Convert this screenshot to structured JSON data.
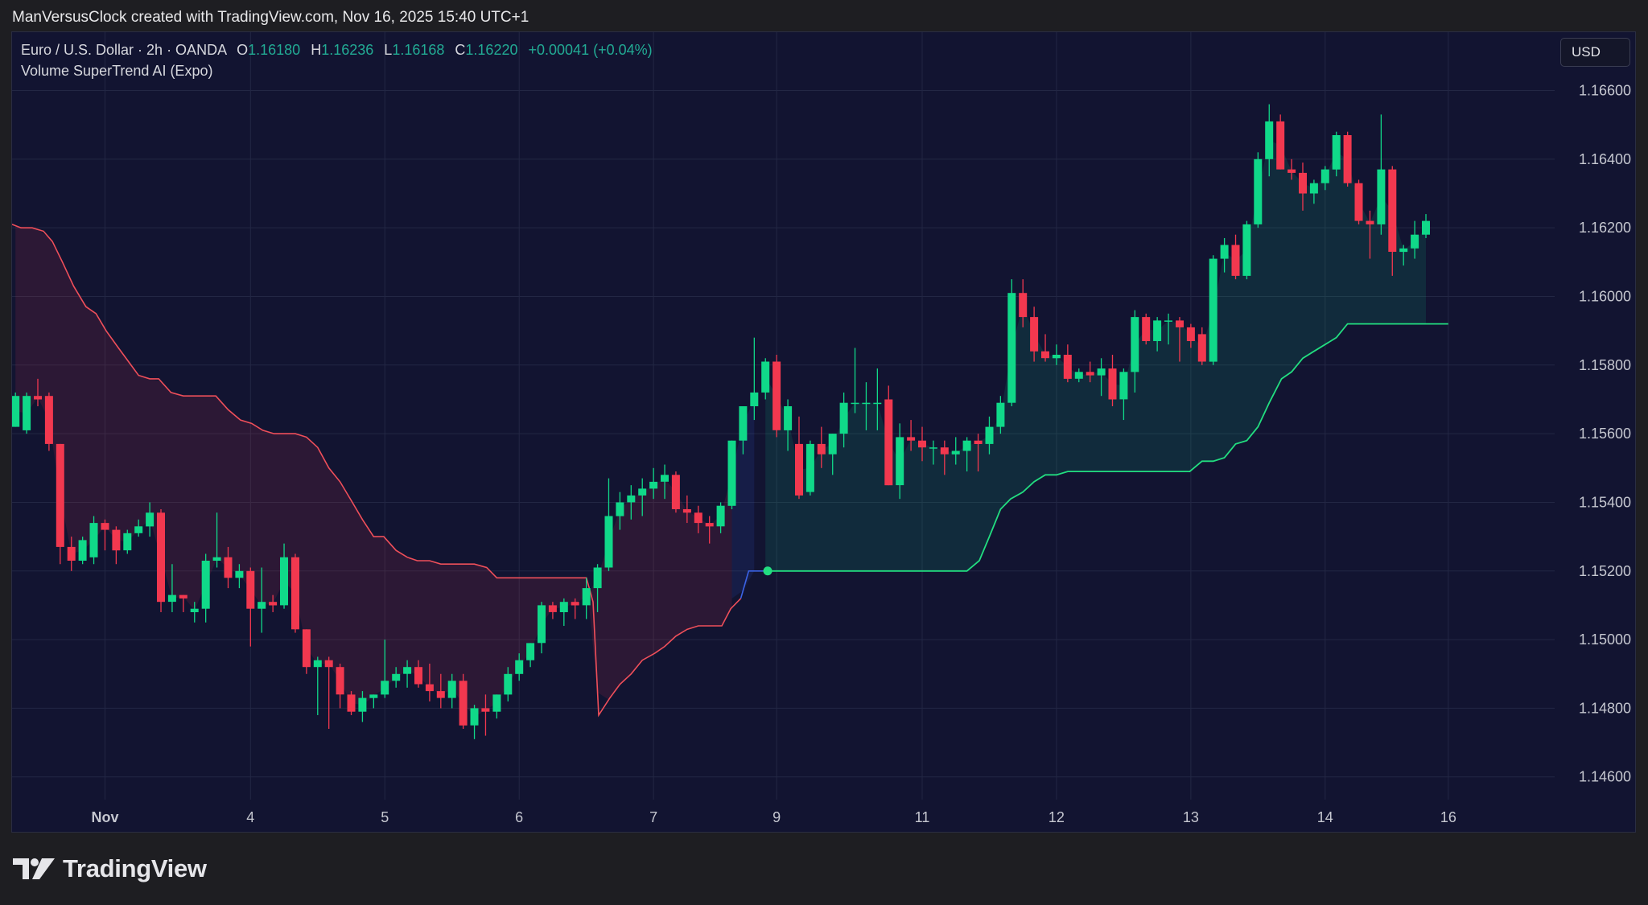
{
  "header": {
    "caption": "ManVersusClock created with TradingView.com, Nov 16, 2025 15:40 UTC+1"
  },
  "legend": {
    "symbol": "Euro / U.S. Dollar · 2h · OANDA",
    "open_label": "O",
    "open": "1.16180",
    "high_label": "H",
    "high": "1.16236",
    "low_label": "L",
    "low": "1.16168",
    "close_label": "C",
    "close": "1.16220",
    "change": "+0.00041 (+0.04%)",
    "indicator": "Volume SuperTrend AI (Expo)"
  },
  "currency_button": {
    "label": "USD"
  },
  "footer": {
    "logo_text": "TradingView",
    "logo_icon": "tradingview-logo-icon"
  },
  "colors": {
    "background": "#121431",
    "grid": "#232744",
    "up": "#10d989",
    "down": "#f2384f",
    "supertrend_down": "#ef4f5a",
    "supertrend_up": "#22dd80",
    "supertrend_transition": "#3b63e6",
    "legend_value": "#22ab94"
  },
  "chart_data": {
    "type": "candlestick",
    "y_ticks": [
      1.146,
      1.148,
      1.15,
      1.152,
      1.154,
      1.156,
      1.158,
      1.16,
      1.162,
      1.164,
      1.166
    ],
    "y_tick_labels": [
      "1.14600",
      "1.14800",
      "1.15000",
      "1.15200",
      "1.15400",
      "1.15600",
      "1.15800",
      "1.16000",
      "1.16200",
      "1.16400",
      "1.16600"
    ],
    "ylim": [
      1.1444,
      1.1677
    ],
    "x_ticks": [
      {
        "label": "Nov",
        "index": 8
      },
      {
        "label": "4",
        "index": 21
      },
      {
        "label": "5",
        "index": 33
      },
      {
        "label": "6",
        "index": 45
      },
      {
        "label": "7",
        "index": 57
      },
      {
        "label": "9",
        "index": 68
      },
      {
        "label": "11",
        "index": 81
      },
      {
        "label": "12",
        "index": 93
      },
      {
        "label": "13",
        "index": 105
      },
      {
        "label": "14",
        "index": 117
      },
      {
        "label": "16",
        "index": 128
      }
    ],
    "x_range": [
      -0.3,
      137.5
    ],
    "ohlc": [
      [
        1.1562,
        1.1572,
        1.1562,
        1.1571
      ],
      [
        1.1561,
        1.1572,
        1.156,
        1.1571
      ],
      [
        1.1571,
        1.1576,
        1.1568,
        1.157
      ],
      [
        1.1571,
        1.1572,
        1.1555,
        1.1557
      ],
      [
        1.1557,
        1.1557,
        1.1522,
        1.1527
      ],
      [
        1.1527,
        1.153,
        1.152,
        1.1523
      ],
      [
        1.1523,
        1.153,
        1.1522,
        1.1529
      ],
      [
        1.1524,
        1.1536,
        1.1522,
        1.1534
      ],
      [
        1.1534,
        1.1535,
        1.1526,
        1.1532
      ],
      [
        1.1532,
        1.1533,
        1.1522,
        1.1526
      ],
      [
        1.1526,
        1.1532,
        1.1525,
        1.1531
      ],
      [
        1.1531,
        1.1535,
        1.153,
        1.1533
      ],
      [
        1.1533,
        1.154,
        1.153,
        1.1537
      ],
      [
        1.1537,
        1.1538,
        1.1508,
        1.1511
      ],
      [
        1.1511,
        1.1522,
        1.1508,
        1.1513
      ],
      [
        1.1513,
        1.1513,
        1.1508,
        1.1512
      ],
      [
        1.1508,
        1.1511,
        1.1505,
        1.1509
      ],
      [
        1.1509,
        1.1525,
        1.1505,
        1.1523
      ],
      [
        1.1523,
        1.1537,
        1.1521,
        1.1524
      ],
      [
        1.1524,
        1.1527,
        1.1515,
        1.1518
      ],
      [
        1.1518,
        1.1522,
        1.1515,
        1.152
      ],
      [
        1.152,
        1.1521,
        1.1498,
        1.1509
      ],
      [
        1.1509,
        1.1521,
        1.1502,
        1.1511
      ],
      [
        1.1511,
        1.1513,
        1.1508,
        1.151
      ],
      [
        1.151,
        1.1528,
        1.1509,
        1.1524
      ],
      [
        1.1524,
        1.1525,
        1.1502,
        1.1503
      ],
      [
        1.1503,
        1.1503,
        1.149,
        1.1492
      ],
      [
        1.1492,
        1.1495,
        1.1478,
        1.1494
      ],
      [
        1.1494,
        1.1495,
        1.1474,
        1.1492
      ],
      [
        1.1492,
        1.1493,
        1.148,
        1.1484
      ],
      [
        1.1484,
        1.1485,
        1.1478,
        1.1479
      ],
      [
        1.1479,
        1.1485,
        1.1476,
        1.1483
      ],
      [
        1.1483,
        1.1484,
        1.148,
        1.1484
      ],
      [
        1.1484,
        1.15,
        1.1483,
        1.1488
      ],
      [
        1.1488,
        1.1492,
        1.1486,
        1.149
      ],
      [
        1.149,
        1.1494,
        1.1486,
        1.1492
      ],
      [
        1.1492,
        1.1494,
        1.1486,
        1.1487
      ],
      [
        1.1487,
        1.1493,
        1.1482,
        1.1485
      ],
      [
        1.1485,
        1.149,
        1.148,
        1.1483
      ],
      [
        1.1483,
        1.149,
        1.148,
        1.1488
      ],
      [
        1.1488,
        1.149,
        1.1474,
        1.1475
      ],
      [
        1.1475,
        1.1481,
        1.1471,
        1.148
      ],
      [
        1.148,
        1.1484,
        1.1472,
        1.1479
      ],
      [
        1.1479,
        1.1484,
        1.1477,
        1.1484
      ],
      [
        1.1484,
        1.1492,
        1.1482,
        1.149
      ],
      [
        1.149,
        1.1496,
        1.1488,
        1.1494
      ],
      [
        1.1494,
        1.1499,
        1.1492,
        1.1499
      ],
      [
        1.1499,
        1.1511,
        1.1496,
        1.151
      ],
      [
        1.151,
        1.1511,
        1.1506,
        1.1508
      ],
      [
        1.1508,
        1.1512,
        1.1504,
        1.1511
      ],
      [
        1.1511,
        1.1512,
        1.1506,
        1.151
      ],
      [
        1.151,
        1.1518,
        1.1506,
        1.1515
      ],
      [
        1.1515,
        1.1522,
        1.1508,
        1.1521
      ],
      [
        1.1521,
        1.1547,
        1.152,
        1.1536
      ],
      [
        1.1536,
        1.1543,
        1.1532,
        1.154
      ],
      [
        1.154,
        1.1545,
        1.1535,
        1.1542
      ],
      [
        1.1542,
        1.1547,
        1.1536,
        1.1544
      ],
      [
        1.1544,
        1.155,
        1.1541,
        1.1546
      ],
      [
        1.1546,
        1.1551,
        1.1541,
        1.1548
      ],
      [
        1.1548,
        1.1549,
        1.1537,
        1.1538
      ],
      [
        1.1538,
        1.1542,
        1.1534,
        1.1537
      ],
      [
        1.1537,
        1.1539,
        1.1531,
        1.1534
      ],
      [
        1.1534,
        1.1536,
        1.1528,
        1.1533
      ],
      [
        1.1533,
        1.154,
        1.1531,
        1.1539
      ],
      [
        1.1539,
        1.1558,
        1.1538,
        1.1558
      ],
      [
        1.1558,
        1.1568,
        1.1554,
        1.1568
      ],
      [
        1.1568,
        1.1588,
        1.1564,
        1.1572
      ],
      [
        1.1572,
        1.1582,
        1.157,
        1.1581
      ],
      [
        1.1581,
        1.1583,
        1.1559,
        1.1561
      ],
      [
        1.1561,
        1.157,
        1.1555,
        1.1568
      ],
      [
        1.1557,
        1.1565,
        1.1541,
        1.1542
      ],
      [
        1.1543,
        1.1558,
        1.1542,
        1.1557
      ],
      [
        1.1557,
        1.1562,
        1.155,
        1.1554
      ],
      [
        1.1554,
        1.156,
        1.1548,
        1.156
      ],
      [
        1.156,
        1.1572,
        1.1556,
        1.1569
      ],
      [
        1.1569,
        1.1585,
        1.1566,
        1.1569
      ],
      [
        1.1569,
        1.1575,
        1.1561,
        1.1569
      ],
      [
        1.1569,
        1.1579,
        1.1561,
        1.1569
      ],
      [
        1.157,
        1.1574,
        1.1545,
        1.1545
      ],
      [
        1.1545,
        1.1563,
        1.1541,
        1.1559
      ],
      [
        1.1559,
        1.1564,
        1.1555,
        1.1558
      ],
      [
        1.1558,
        1.1562,
        1.1552,
        1.1556
      ],
      [
        1.1556,
        1.1558,
        1.1551,
        1.1556
      ],
      [
        1.1556,
        1.1558,
        1.1548,
        1.1554
      ],
      [
        1.1554,
        1.1559,
        1.1551,
        1.1555
      ],
      [
        1.1555,
        1.1559,
        1.1549,
        1.1558
      ],
      [
        1.1558,
        1.156,
        1.1549,
        1.1557
      ],
      [
        1.1557,
        1.1565,
        1.1554,
        1.1562
      ],
      [
        1.1562,
        1.1571,
        1.156,
        1.1569
      ],
      [
        1.1569,
        1.1605,
        1.1568,
        1.1601
      ],
      [
        1.1601,
        1.1605,
        1.1591,
        1.1594
      ],
      [
        1.1594,
        1.1597,
        1.1581,
        1.1584
      ],
      [
        1.1584,
        1.1589,
        1.1581,
        1.1582
      ],
      [
        1.1582,
        1.1586,
        1.158,
        1.1583
      ],
      [
        1.1583,
        1.1586,
        1.1575,
        1.1576
      ],
      [
        1.1576,
        1.1579,
        1.1575,
        1.1578
      ],
      [
        1.1578,
        1.1581,
        1.1575,
        1.1577
      ],
      [
        1.1577,
        1.1582,
        1.1571,
        1.1579
      ],
      [
        1.1579,
        1.1583,
        1.1568,
        1.157
      ],
      [
        1.157,
        1.1579,
        1.1564,
        1.1578
      ],
      [
        1.1578,
        1.1596,
        1.1572,
        1.1594
      ],
      [
        1.1594,
        1.1595,
        1.1586,
        1.1587
      ],
      [
        1.1587,
        1.1594,
        1.1584,
        1.1593
      ],
      [
        1.1593,
        1.1595,
        1.1586,
        1.1593
      ],
      [
        1.1593,
        1.1594,
        1.1581,
        1.1591
      ],
      [
        1.1591,
        1.1592,
        1.1585,
        1.1587
      ],
      [
        1.1589,
        1.1591,
        1.158,
        1.1581
      ],
      [
        1.1581,
        1.1612,
        1.158,
        1.1611
      ],
      [
        1.1611,
        1.1617,
        1.1607,
        1.1615
      ],
      [
        1.1615,
        1.1618,
        1.1605,
        1.1606
      ],
      [
        1.1606,
        1.1622,
        1.1605,
        1.1621
      ],
      [
        1.1621,
        1.1642,
        1.162,
        1.164
      ],
      [
        1.164,
        1.1656,
        1.1635,
        1.1651
      ],
      [
        1.1651,
        1.1653,
        1.1637,
        1.1637
      ],
      [
        1.1637,
        1.164,
        1.1634,
        1.1636
      ],
      [
        1.1636,
        1.1639,
        1.1625,
        1.163
      ],
      [
        1.163,
        1.1634,
        1.1627,
        1.1633
      ],
      [
        1.1633,
        1.1638,
        1.1631,
        1.1637
      ],
      [
        1.1637,
        1.1648,
        1.1635,
        1.1647
      ],
      [
        1.1647,
        1.1648,
        1.1632,
        1.1633
      ],
      [
        1.1633,
        1.1634,
        1.1621,
        1.1622
      ],
      [
        1.1622,
        1.1625,
        1.1611,
        1.1621
      ],
      [
        1.1621,
        1.1653,
        1.1618,
        1.1637
      ],
      [
        1.1637,
        1.1638,
        1.1606,
        1.1613
      ],
      [
        1.1613,
        1.1615,
        1.1609,
        1.1614
      ],
      [
        1.1614,
        1.1622,
        1.1611,
        1.1618
      ],
      [
        1.1618,
        1.1624,
        1.1617,
        1.1622
      ]
    ],
    "supertrend": {
      "down": [
        [
          -0.3,
          1.1621
        ],
        [
          0.5,
          1.162
        ],
        [
          1.5,
          1.162
        ],
        [
          2.5,
          1.1619
        ],
        [
          3.3,
          1.1616
        ],
        [
          4.2,
          1.161
        ],
        [
          5.2,
          1.1603
        ],
        [
          6.3,
          1.1597
        ],
        [
          7.2,
          1.1595
        ],
        [
          8.1,
          1.159
        ],
        [
          9.2,
          1.1585
        ],
        [
          10.1,
          1.1581
        ],
        [
          11.0,
          1.1577
        ],
        [
          12.0,
          1.1576
        ],
        [
          12.8,
          1.1576
        ],
        [
          13.9,
          1.1572
        ],
        [
          15.0,
          1.1571
        ],
        [
          17.9,
          1.1571
        ],
        [
          19.0,
          1.1567
        ],
        [
          20.1,
          1.1564
        ],
        [
          21.1,
          1.1563
        ],
        [
          22.1,
          1.1561
        ],
        [
          23.1,
          1.156
        ],
        [
          25.0,
          1.156
        ],
        [
          26.0,
          1.1559
        ],
        [
          27.0,
          1.1556
        ],
        [
          28.0,
          1.155
        ],
        [
          29.0,
          1.1546
        ],
        [
          30.1,
          1.154
        ],
        [
          31.0,
          1.1535
        ],
        [
          32.0,
          1.153
        ],
        [
          32.9,
          1.153
        ],
        [
          34.0,
          1.1526
        ],
        [
          35.0,
          1.1524
        ],
        [
          35.9,
          1.1523
        ],
        [
          37.0,
          1.1523
        ],
        [
          38.0,
          1.1522
        ],
        [
          39.0,
          1.1522
        ],
        [
          40.0,
          1.1522
        ],
        [
          41.0,
          1.1522
        ],
        [
          42.1,
          1.1521
        ],
        [
          43.0,
          1.1518
        ],
        [
          44.0,
          1.1518
        ],
        [
          51.0,
          1.1518
        ],
        [
          51.6,
          1.1511
        ],
        [
          52.1,
          1.1478
        ],
        [
          53.1,
          1.1483
        ],
        [
          54.0,
          1.1487
        ],
        [
          55.0,
          1.149
        ],
        [
          56.0,
          1.1494
        ],
        [
          57.1,
          1.1496
        ],
        [
          58.0,
          1.1498
        ],
        [
          59.0,
          1.1501
        ],
        [
          60.0,
          1.1503
        ],
        [
          61.0,
          1.1504
        ],
        [
          61.9,
          1.1504
        ],
        [
          63.1,
          1.1504
        ],
        [
          63.9,
          1.1509
        ],
        [
          64.8,
          1.1512
        ]
      ],
      "transition": [
        [
          64.8,
          1.1512
        ],
        [
          65.5,
          1.152
        ],
        [
          67.2,
          1.152
        ]
      ],
      "up": [
        [
          67.2,
          1.152
        ],
        [
          85.0,
          1.152
        ],
        [
          86.1,
          1.1523
        ],
        [
          87.0,
          1.153
        ],
        [
          88.0,
          1.1538
        ],
        [
          88.9,
          1.1541
        ],
        [
          90.0,
          1.1543
        ],
        [
          91.0,
          1.1546
        ],
        [
          92.0,
          1.1548
        ],
        [
          93.0,
          1.1548
        ],
        [
          94.0,
          1.1549
        ],
        [
          100.0,
          1.1549
        ],
        [
          104.9,
          1.1549
        ],
        [
          106.0,
          1.1552
        ],
        [
          107.0,
          1.1552
        ],
        [
          108.0,
          1.1553
        ],
        [
          109.0,
          1.1557
        ],
        [
          110.0,
          1.1558
        ],
        [
          111.0,
          1.1562
        ],
        [
          112.0,
          1.1569
        ],
        [
          113.1,
          1.1576
        ],
        [
          114.0,
          1.1578
        ],
        [
          115.0,
          1.1582
        ],
        [
          116.0,
          1.1584
        ],
        [
          117.0,
          1.1586
        ],
        [
          118.0,
          1.1588
        ],
        [
          119.0,
          1.1592
        ],
        [
          120.0,
          1.1592
        ],
        [
          128.0,
          1.1592
        ]
      ],
      "signal": [
        67.2,
        1.152
      ]
    }
  }
}
